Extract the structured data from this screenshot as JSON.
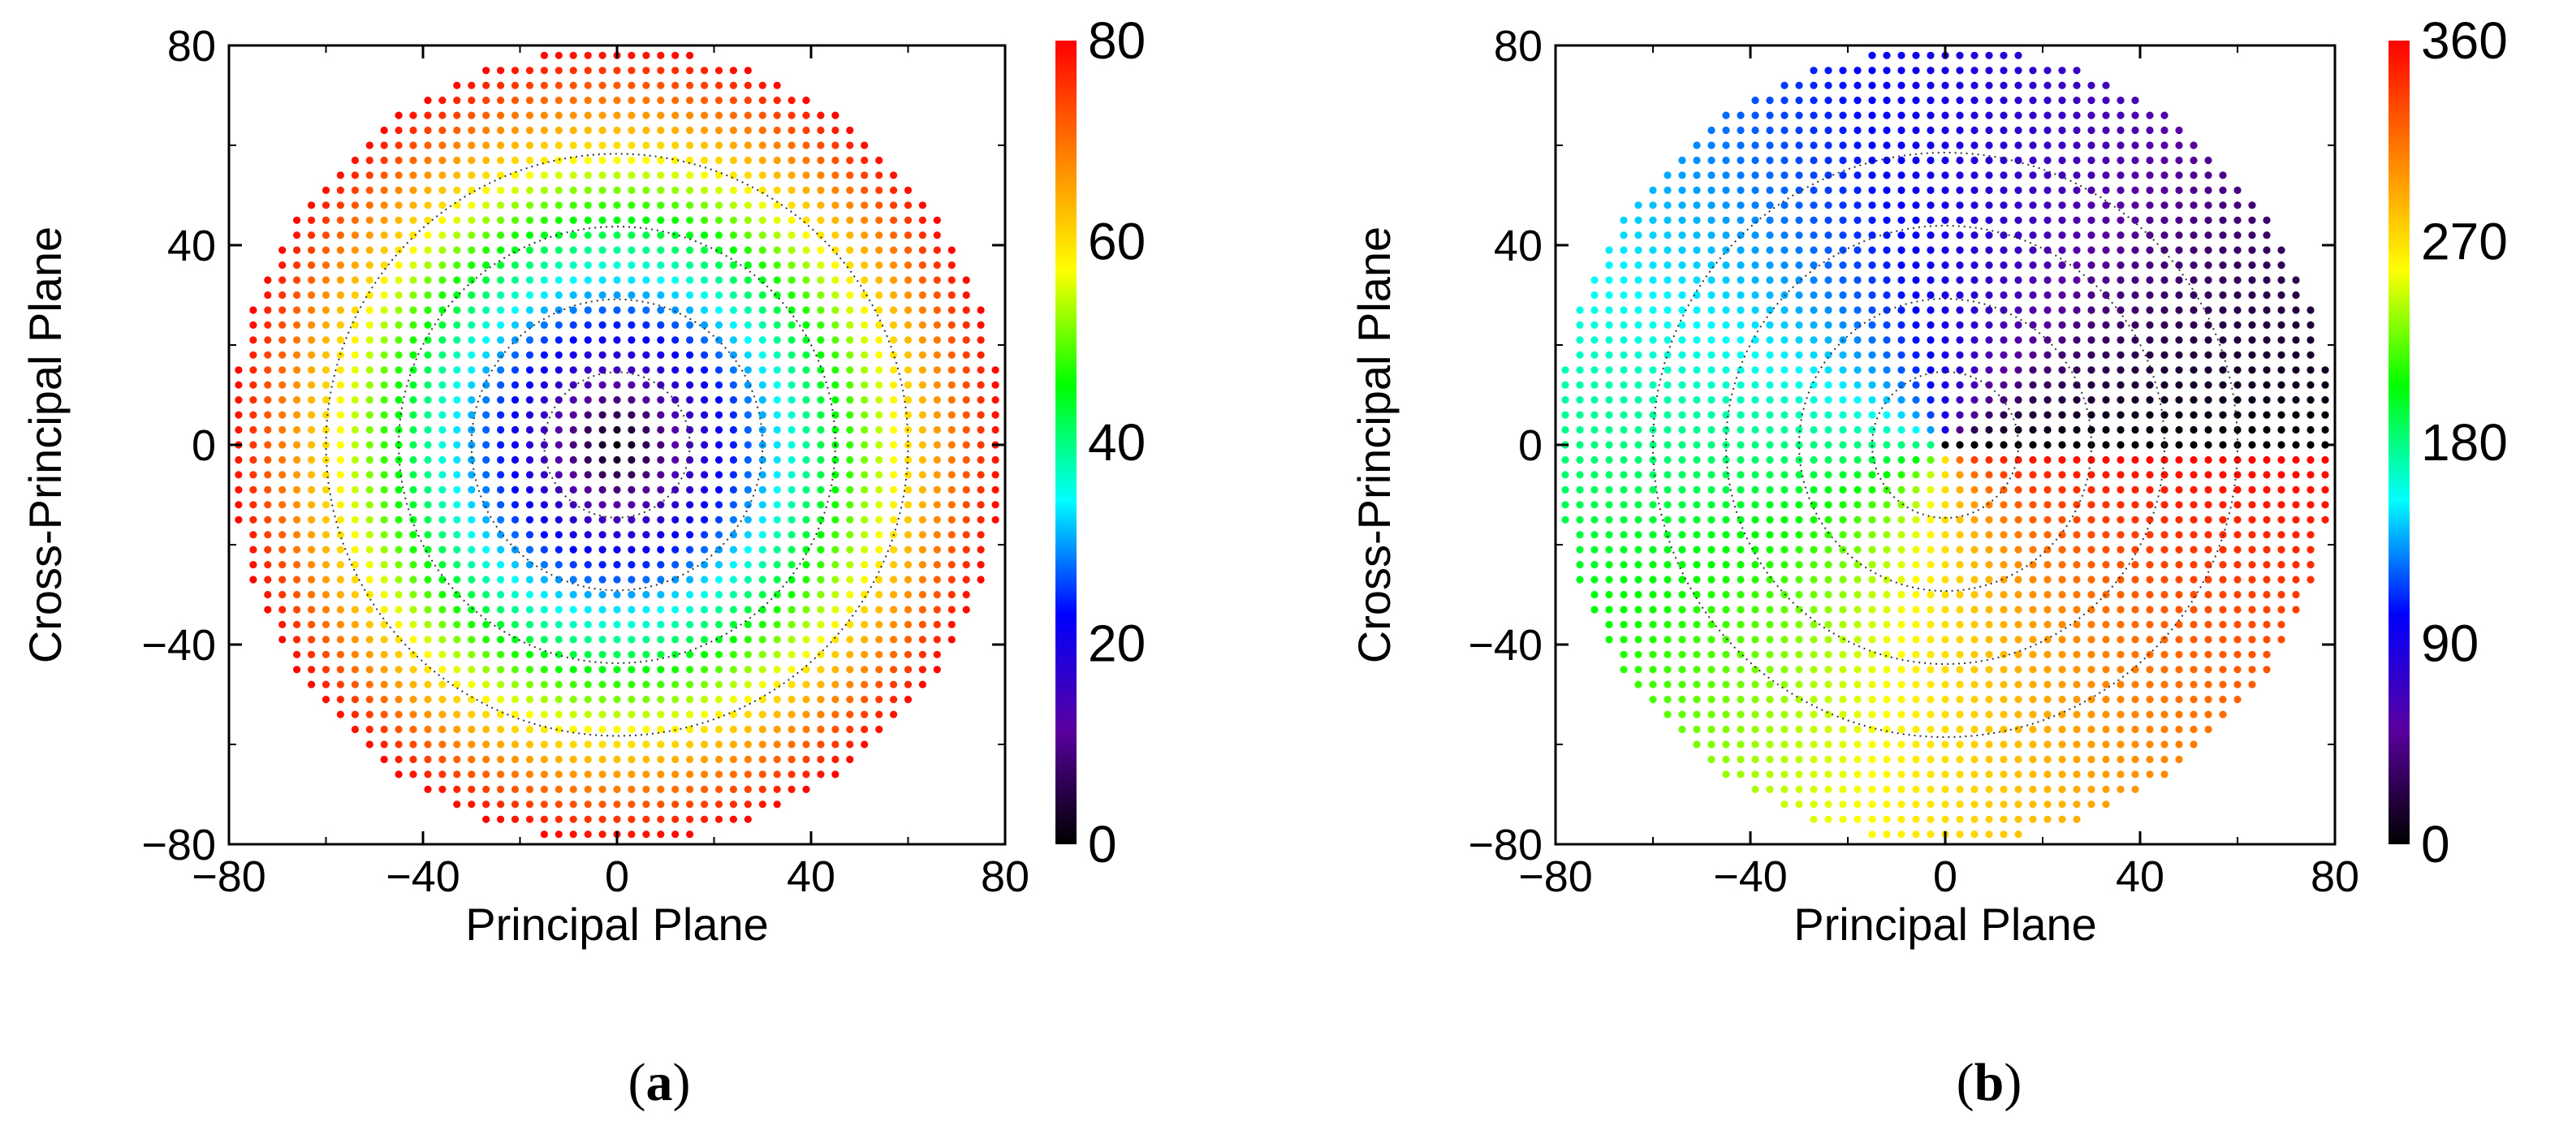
{
  "chart_data": [
    {
      "type": "scatter",
      "panel_label": "a",
      "xlabel": "Principal Plane",
      "ylabel": "Cross-Principal Plane",
      "xlim": [
        -80,
        80
      ],
      "ylim": [
        -80,
        80
      ],
      "xticks": [
        "−80",
        "−40",
        "0",
        "40",
        "80"
      ],
      "yticks": [
        "−80",
        "−40",
        "0",
        "40",
        "80"
      ],
      "grid_spacing": 3,
      "domain_radius": 80,
      "color_quantity": "radius",
      "colorbar": {
        "min": 0,
        "max": 80,
        "ticks": [
          "0",
          "20",
          "40",
          "60",
          "80"
        ]
      },
      "contour_levels": [
        15,
        30,
        45,
        60
      ]
    },
    {
      "type": "scatter",
      "panel_label": "b",
      "xlabel": "Principal Plane",
      "ylabel": "Cross-Principal Plane",
      "xlim": [
        -80,
        80
      ],
      "ylim": [
        -80,
        80
      ],
      "xticks": [
        "−80",
        "−40",
        "0",
        "40",
        "80"
      ],
      "yticks": [
        "−80",
        "−40",
        "0",
        "40",
        "80"
      ],
      "grid_spacing": 3,
      "domain_radius": 80,
      "color_quantity": "angle",
      "colorbar": {
        "min": 0,
        "max": 360,
        "ticks": [
          "0",
          "90",
          "180",
          "270",
          "360"
        ]
      },
      "contour_levels": [
        15,
        30,
        45,
        60
      ]
    }
  ],
  "colormap": [
    "#000000",
    "#5a00a0",
    "#0000ff",
    "#00ffff",
    "#00ff00",
    "#ffff00",
    "#ff8000",
    "#ff0000"
  ],
  "captions": {
    "a_open": "(",
    "a_letter": "a",
    "a_close": ")",
    "b_open": "(",
    "b_letter": "b",
    "b_close": ")"
  }
}
